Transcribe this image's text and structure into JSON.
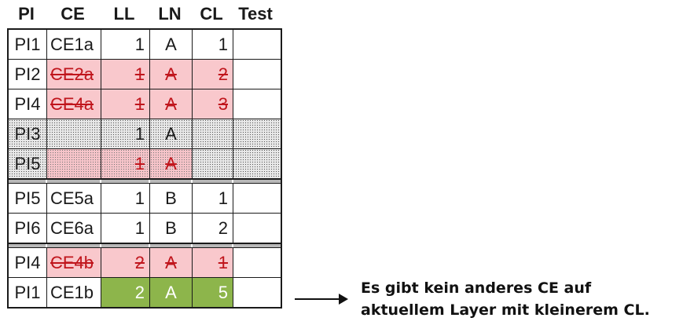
{
  "headers": [
    "PI",
    "CE",
    "LL",
    "LN",
    "CL",
    "Test"
  ],
  "rows": [
    {
      "pi": "PI1",
      "ce": "CE1a",
      "ll": "1",
      "ln": "A",
      "cl": "1"
    },
    {
      "pi": "PI2",
      "ce": "CE2a",
      "ll": "1",
      "ln": "A",
      "cl": "2"
    },
    {
      "pi": "PI4",
      "ce": "CE4a",
      "ll": "1",
      "ln": "A",
      "cl": "3"
    },
    {
      "pi": "PI3",
      "ce": "",
      "ll": "1",
      "ln": "A",
      "cl": ""
    },
    {
      "pi": "PI5",
      "ce": "",
      "ll": "1",
      "ln": "A",
      "cl": ""
    },
    {
      "pi": "PI5",
      "ce": "CE5a",
      "ll": "1",
      "ln": "B",
      "cl": "1"
    },
    {
      "pi": "PI6",
      "ce": "CE6a",
      "ll": "1",
      "ln": "B",
      "cl": "2"
    },
    {
      "pi": "PI4",
      "ce": "CE4b",
      "ll": "2",
      "ln": "A",
      "cl": "1"
    },
    {
      "pi": "PI1",
      "ce": "CE1b",
      "ll": "2",
      "ln": "A",
      "cl": "5"
    }
  ],
  "annotation": {
    "line1": "Es gibt kein anderes CE auf",
    "line2": "aktuellem Layer mit kleinerem CL."
  },
  "colors": {
    "struck_fill": "#f9c8cc",
    "struck_text": "#c0151c",
    "selected_fill": "#8db54b"
  }
}
